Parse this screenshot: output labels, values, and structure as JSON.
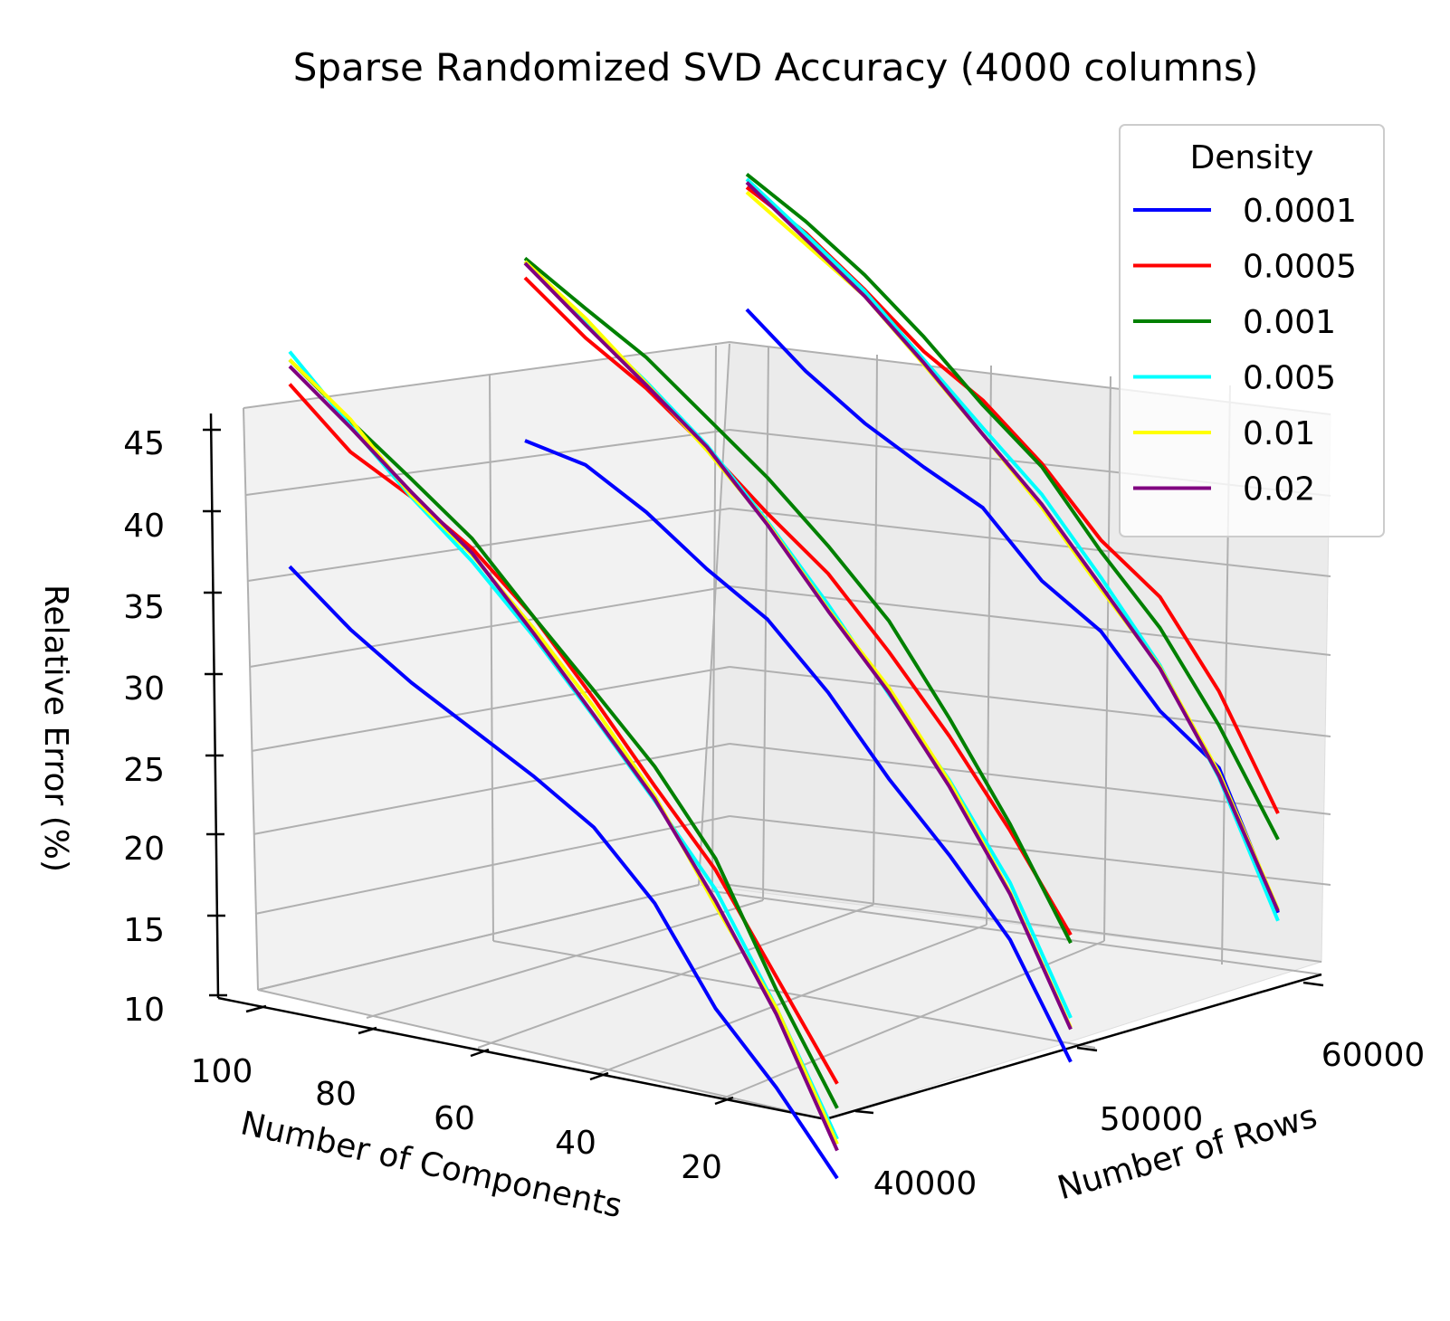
{
  "chart_data": {
    "type": "line",
    "title": "Sparse Randomized SVD Accuracy (4000 columns)",
    "xlabel": "Number of Components",
    "ylabel": "Number of Rows",
    "zlabel": "Relative Error (%)",
    "x_ticks": [
      "100",
      "80",
      "60",
      "40",
      "20"
    ],
    "y_ticks": [
      "40000",
      "50000",
      "60000"
    ],
    "z_ticks": [
      "10",
      "15",
      "20",
      "25",
      "30",
      "35",
      "40",
      "45"
    ],
    "x_range": [
      10,
      100
    ],
    "y_range": [
      40000,
      60000
    ],
    "z_range": [
      10,
      45
    ],
    "grid": true,
    "legend": {
      "title": "Density",
      "position": "top-right"
    },
    "x": [
      100,
      90,
      80,
      70,
      60,
      50,
      40,
      30,
      20,
      10
    ],
    "series": [
      {
        "name": "0.0001",
        "color": "#0000ff",
        "values_by_rows": {
          "40000": [
            31.6,
            29.3,
            27.6,
            26.3,
            25.0,
            23.4,
            20.3,
            15.4,
            12.1,
            8.1
          ],
          "50000": [
            36.0,
            36.0,
            34.6,
            32.6,
            31.0,
            28.0,
            24.2,
            21.0,
            17.3,
            11.3
          ],
          "60000": [
            41.0,
            38.7,
            37.0,
            35.8,
            34.8,
            31.8,
            30.2,
            26.8,
            24.8,
            17.4
          ]
        }
      },
      {
        "name": "0.0005",
        "color": "#ff0000",
        "values_by_rows": {
          "40000": [
            42.8,
            40.2,
            39.0,
            37.4,
            34.8,
            31.3,
            27.5,
            23.9,
            18.9,
            13.9
          ],
          "50000": [
            46.0,
            43.8,
            42.2,
            40.0,
            37.5,
            35.3,
            32.0,
            28.3,
            24.0,
            19.1
          ],
          "60000": [
            48.5,
            47.2,
            45.2,
            42.9,
            41.4,
            39.0,
            35.8,
            33.8,
            29.5,
            23.5
          ]
        }
      },
      {
        "name": "0.001",
        "color": "#008000",
        "values_by_rows": {
          "40000": [
            44.3,
            42.1,
            40.1,
            38.0,
            34.8,
            31.8,
            28.7,
            24.6,
            18.1,
            12.4
          ],
          "50000": [
            47.2,
            45.6,
            44.1,
            41.9,
            39.7,
            37.0,
            33.9,
            29.4,
            24.4,
            18.6
          ],
          "60000": [
            49.3,
            47.9,
            46.1,
            43.8,
            41.1,
            38.8,
            35.1,
            31.9,
            27.4,
            21.9
          ]
        }
      },
      {
        "name": "0.005",
        "color": "#00ffff",
        "values_by_rows": {
          "40000": [
            44.8,
            41.8,
            39.0,
            36.6,
            33.6,
            30.2,
            26.6,
            22.7,
            17.0,
            10.5
          ],
          "50000": [
            47.0,
            44.7,
            42.6,
            40.2,
            37.0,
            33.4,
            29.4,
            25.6,
            20.8,
            14.0
          ],
          "60000": [
            49.0,
            47.1,
            45.1,
            42.4,
            39.7,
            37.1,
            33.5,
            29.6,
            24.2,
            16.9
          ]
        }
      },
      {
        "name": "0.01",
        "color": "#ffff00",
        "values_by_rows": {
          "40000": [
            44.3,
            42.2,
            39.1,
            37.0,
            34.1,
            30.8,
            26.9,
            21.7,
            17.0,
            10.2
          ],
          "50000": [
            47.0,
            45.0,
            42.5,
            39.9,
            36.9,
            33.1,
            29.8,
            25.5,
            20.2,
            13.4
          ],
          "60000": [
            48.2,
            46.5,
            44.8,
            42.1,
            39.3,
            36.3,
            32.8,
            29.5,
            24.5,
            17.6
          ]
        }
      },
      {
        "name": "0.02",
        "color": "#800080",
        "values_by_rows": {
          "40000": [
            43.9,
            41.7,
            39.3,
            37.1,
            33.8,
            30.3,
            26.7,
            22.0,
            16.6,
            9.8
          ],
          "50000": [
            46.9,
            44.6,
            42.4,
            40.1,
            36.8,
            33.0,
            29.5,
            25.2,
            20.1,
            13.3
          ],
          "60000": [
            48.8,
            46.8,
            44.8,
            42.2,
            39.3,
            36.5,
            33.0,
            29.4,
            24.3,
            17.5
          ]
        }
      }
    ]
  }
}
